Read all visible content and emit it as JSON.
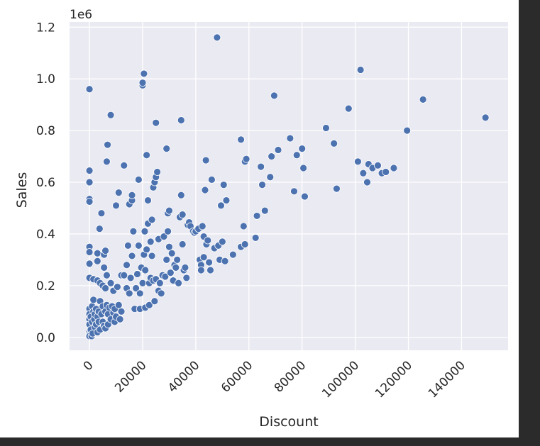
{
  "chart_data": {
    "type": "scatter",
    "xlabel": "Discount",
    "ylabel": "Sales",
    "y_offset_label": "1e6",
    "xlim": [
      -7500,
      157500
    ],
    "ylim": [
      -0.05,
      1.22
    ],
    "x_ticks": [
      0,
      20000,
      40000,
      60000,
      80000,
      100000,
      120000,
      140000
    ],
    "x_tick_labels": [
      "0",
      "20000",
      "40000",
      "60000",
      "80000",
      "100000",
      "120000",
      "140000"
    ],
    "y_ticks": [
      0.0,
      0.2,
      0.4,
      0.6,
      0.8,
      1.0,
      1.2
    ],
    "y_tick_labels": [
      "0.0",
      "0.2",
      "0.4",
      "0.6",
      "0.8",
      "1.0",
      "1.2"
    ],
    "grid": true,
    "background": "#eaeaf2",
    "marker_color": "#4c72b0",
    "points": [
      [
        0,
        0.96
      ],
      [
        0,
        0.645
      ],
      [
        0,
        0.6
      ],
      [
        0,
        0.535
      ],
      [
        0,
        0.525
      ],
      [
        0,
        0.35
      ],
      [
        0,
        0.33
      ],
      [
        0,
        0.285
      ],
      [
        0,
        0.23
      ],
      [
        0,
        0.11
      ],
      [
        0,
        0.09
      ],
      [
        0,
        0.07
      ],
      [
        0,
        0.05
      ],
      [
        0,
        0.02
      ],
      [
        0,
        0.01
      ],
      [
        0,
        0.005
      ],
      [
        500,
        0.08
      ],
      [
        500,
        0.03
      ],
      [
        800,
        0.005
      ],
      [
        1000,
        0.12
      ],
      [
        1000,
        0.06
      ],
      [
        1200,
        0.015
      ],
      [
        1500,
        0.225
      ],
      [
        1500,
        0.145
      ],
      [
        1500,
        0.1
      ],
      [
        1800,
        0.07
      ],
      [
        2000,
        0.09
      ],
      [
        2000,
        0.04
      ],
      [
        2500,
        0.11
      ],
      [
        2500,
        0.05
      ],
      [
        3000,
        0.325
      ],
      [
        3000,
        0.295
      ],
      [
        3000,
        0.22
      ],
      [
        3000,
        0.08
      ],
      [
        3000,
        0.02
      ],
      [
        3500,
        0.1
      ],
      [
        3500,
        0.06
      ],
      [
        3800,
        0.42
      ],
      [
        4000,
        0.21
      ],
      [
        4000,
        0.14
      ],
      [
        4000,
        0.03
      ],
      [
        4500,
        0.48
      ],
      [
        4500,
        0.09
      ],
      [
        5000,
        0.2
      ],
      [
        5000,
        0.12
      ],
      [
        5000,
        0.06
      ],
      [
        5500,
        0.32
      ],
      [
        5500,
        0.27
      ],
      [
        5500,
        0.045
      ],
      [
        6000,
        0.335
      ],
      [
        6000,
        0.19
      ],
      [
        6000,
        0.1
      ],
      [
        6000,
        0.035
      ],
      [
        6500,
        0.68
      ],
      [
        6500,
        0.24
      ],
      [
        6500,
        0.125
      ],
      [
        6800,
        0.745
      ],
      [
        7000,
        0.09
      ],
      [
        7000,
        0.05
      ],
      [
        7500,
        0.115
      ],
      [
        8000,
        0.86
      ],
      [
        8000,
        0.21
      ],
      [
        8000,
        0.07
      ],
      [
        8500,
        0.12
      ],
      [
        9000,
        0.18
      ],
      [
        9000,
        0.095
      ],
      [
        9500,
        0.11
      ],
      [
        9500,
        0.06
      ],
      [
        10000,
        0.51
      ],
      [
        10000,
        0.08
      ],
      [
        10500,
        0.195
      ],
      [
        11000,
        0.56
      ],
      [
        11000,
        0.125
      ],
      [
        11500,
        0.07
      ],
      [
        12000,
        0.24
      ],
      [
        12000,
        0.1
      ],
      [
        13000,
        0.665
      ],
      [
        13000,
        0.24
      ],
      [
        14000,
        0.19
      ],
      [
        14000,
        0.28
      ],
      [
        14500,
        0.355
      ],
      [
        15000,
        0.17
      ],
      [
        15000,
        0.515
      ],
      [
        15500,
        0.23
      ],
      [
        16000,
        0.53
      ],
      [
        16000,
        0.55
      ],
      [
        16000,
        0.315
      ],
      [
        16500,
        0.41
      ],
      [
        17000,
        0.11
      ],
      [
        17500,
        0.19
      ],
      [
        18000,
        0.245
      ],
      [
        18500,
        0.61
      ],
      [
        18500,
        0.355
      ],
      [
        19000,
        0.11
      ],
      [
        19000,
        0.17
      ],
      [
        19500,
        0.27
      ],
      [
        20000,
        0.975
      ],
      [
        20000,
        0.985
      ],
      [
        20000,
        0.21
      ],
      [
        20500,
        1.02
      ],
      [
        20500,
        0.32
      ],
      [
        20800,
        0.41
      ],
      [
        21000,
        0.115
      ],
      [
        21000,
        0.26
      ],
      [
        21500,
        0.705
      ],
      [
        21500,
        0.34
      ],
      [
        22000,
        0.53
      ],
      [
        22000,
        0.44
      ],
      [
        22500,
        0.21
      ],
      [
        22500,
        0.125
      ],
      [
        23000,
        0.23
      ],
      [
        23000,
        0.37
      ],
      [
        23500,
        0.455
      ],
      [
        23500,
        0.315
      ],
      [
        24000,
        0.58
      ],
      [
        24000,
        0.22
      ],
      [
        24500,
        0.6
      ],
      [
        24500,
        0.14
      ],
      [
        25000,
        0.83
      ],
      [
        25000,
        0.62
      ],
      [
        25000,
        0.225
      ],
      [
        25500,
        0.64
      ],
      [
        26000,
        0.18
      ],
      [
        26000,
        0.38
      ],
      [
        26500,
        0.21
      ],
      [
        27000,
        0.17
      ],
      [
        27500,
        0.24
      ],
      [
        28000,
        0.39
      ],
      [
        28500,
        0.235
      ],
      [
        29000,
        0.73
      ],
      [
        29000,
        0.3
      ],
      [
        29500,
        0.48
      ],
      [
        29500,
        0.41
      ],
      [
        30000,
        0.35
      ],
      [
        30000,
        0.49
      ],
      [
        30500,
        0.25
      ],
      [
        31000,
        0.325
      ],
      [
        31500,
        0.22
      ],
      [
        32000,
        0.28
      ],
      [
        32500,
        0.27
      ],
      [
        33000,
        0.3
      ],
      [
        33500,
        0.21
      ],
      [
        34000,
        0.465
      ],
      [
        34500,
        0.84
      ],
      [
        34500,
        0.55
      ],
      [
        35000,
        0.475
      ],
      [
        35000,
        0.36
      ],
      [
        35500,
        0.26
      ],
      [
        36000,
        0.27
      ],
      [
        36500,
        0.23
      ],
      [
        37000,
        0.435
      ],
      [
        37500,
        0.445
      ],
      [
        38000,
        0.43
      ],
      [
        39000,
        0.41
      ],
      [
        39500,
        0.405
      ],
      [
        40000,
        0.41
      ],
      [
        41000,
        0.42
      ],
      [
        41500,
        0.3
      ],
      [
        42000,
        0.28
      ],
      [
        42000,
        0.26
      ],
      [
        42500,
        0.43
      ],
      [
        43000,
        0.31
      ],
      [
        43000,
        0.39
      ],
      [
        43500,
        0.57
      ],
      [
        43800,
        0.685
      ],
      [
        44000,
        0.36
      ],
      [
        44500,
        0.375
      ],
      [
        45000,
        0.29
      ],
      [
        45500,
        0.26
      ],
      [
        46000,
        0.61
      ],
      [
        47000,
        0.345
      ],
      [
        48000,
        1.16
      ],
      [
        48500,
        0.355
      ],
      [
        49000,
        0.3
      ],
      [
        49500,
        0.51
      ],
      [
        50000,
        0.37
      ],
      [
        50500,
        0.59
      ],
      [
        51000,
        0.295
      ],
      [
        51500,
        0.53
      ],
      [
        54000,
        0.32
      ],
      [
        57000,
        0.765
      ],
      [
        57000,
        0.35
      ],
      [
        58000,
        0.43
      ],
      [
        58500,
        0.68
      ],
      [
        58500,
        0.36
      ],
      [
        59000,
        0.69
      ],
      [
        62500,
        0.385
      ],
      [
        63000,
        0.47
      ],
      [
        64500,
        0.66
      ],
      [
        65000,
        0.59
      ],
      [
        66000,
        0.49
      ],
      [
        68000,
        0.62
      ],
      [
        68500,
        0.7
      ],
      [
        69500,
        0.935
      ],
      [
        71000,
        0.725
      ],
      [
        75500,
        0.77
      ],
      [
        77000,
        0.565
      ],
      [
        78000,
        0.705
      ],
      [
        80000,
        0.73
      ],
      [
        80500,
        0.655
      ],
      [
        81000,
        0.545
      ],
      [
        89000,
        0.81
      ],
      [
        92000,
        0.75
      ],
      [
        93000,
        0.575
      ],
      [
        97500,
        0.885
      ],
      [
        101000,
        0.68
      ],
      [
        102000,
        1.035
      ],
      [
        103000,
        0.635
      ],
      [
        104500,
        0.6
      ],
      [
        105000,
        0.67
      ],
      [
        106500,
        0.655
      ],
      [
        108500,
        0.665
      ],
      [
        110000,
        0.635
      ],
      [
        111500,
        0.64
      ],
      [
        114500,
        0.655
      ],
      [
        119500,
        0.8
      ],
      [
        125500,
        0.92
      ],
      [
        149000,
        0.85
      ]
    ]
  }
}
